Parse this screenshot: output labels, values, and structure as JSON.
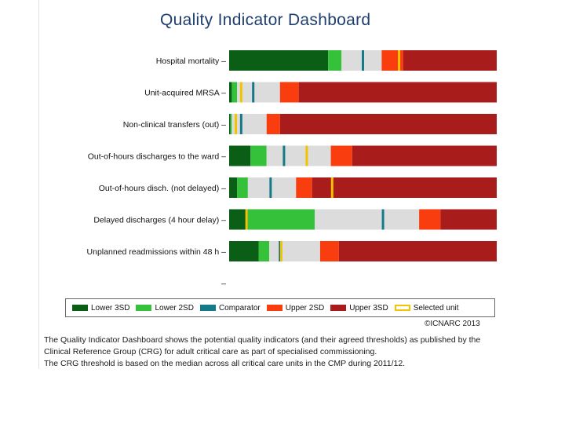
{
  "title": "Quality Indicator Dashboard",
  "colors": {
    "lower3": "#0b5e16",
    "lower2": "#35c23a",
    "comparator": "#157a88",
    "upper2": "#fa3d0f",
    "upper3": "#a81c1c",
    "selected": "#f2c400",
    "neutral": "#dcdcdc"
  },
  "chart_data": {
    "type": "bar",
    "categories": [
      "Hospital mortality",
      "Unit-acquired MRSA",
      "Non-clinical transfers (out)",
      "Out-of-hours discharges to the ward",
      "Out-of-hours disch. (not delayed)",
      "Delayed discharges (4 hour delay)",
      "Unplanned readmissions within 48 h",
      ""
    ],
    "bars": [
      {
        "lower3": 37,
        "lower2": 42,
        "upper2": 57,
        "upper3": 65,
        "comparator": 50,
        "selected": 63.5
      },
      {
        "lower3": 1,
        "lower2": 3,
        "upper2": 19,
        "upper3": 26,
        "comparator": 9,
        "selected": 4.5
      },
      {
        "lower3": 0.5,
        "lower2": 1,
        "upper2": 14,
        "upper3": 19,
        "comparator": 4.5,
        "selected": 2.5
      },
      {
        "lower3": 8,
        "lower2": 14,
        "upper2": 38,
        "upper3": 46,
        "comparator": 20.5,
        "selected": 29
      },
      {
        "lower3": 3,
        "lower2": 7,
        "upper2": 25,
        "upper3": 31,
        "comparator": 15.5,
        "selected": 38.5
      },
      {
        "lower3": 7,
        "lower2": 32,
        "upper2": 71,
        "upper3": 79,
        "comparator": 57.5,
        "selected": 6.5
      },
      {
        "lower3": 11,
        "lower2": 15,
        "upper2": 34,
        "upper3": 41,
        "comparator": 19,
        "selected": 19.5
      },
      null
    ],
    "xlim": [
      0,
      100
    ],
    "legend": [
      {
        "key": "lower3",
        "label": "Lower 3SD"
      },
      {
        "key": "lower2",
        "label": "Lower 2SD"
      },
      {
        "key": "comparator",
        "label": "Comparator"
      },
      {
        "key": "upper2",
        "label": "Upper 2SD"
      },
      {
        "key": "upper3",
        "label": "Upper 3SD"
      },
      {
        "key": "selected",
        "label": "Selected unit"
      }
    ],
    "legend_position": "bottom"
  },
  "copyright": "©ICNARC 2013",
  "footnote": [
    "The Quality Indicator Dashboard shows the potential quality indicators (and their agreed thresholds) as published by the",
    "Clinical Reference Group (CRG) for adult critical care as part of specialised commissioning.",
    "The CRG threshold is based on the median across all critical care units in the CMP during 2011/12."
  ]
}
